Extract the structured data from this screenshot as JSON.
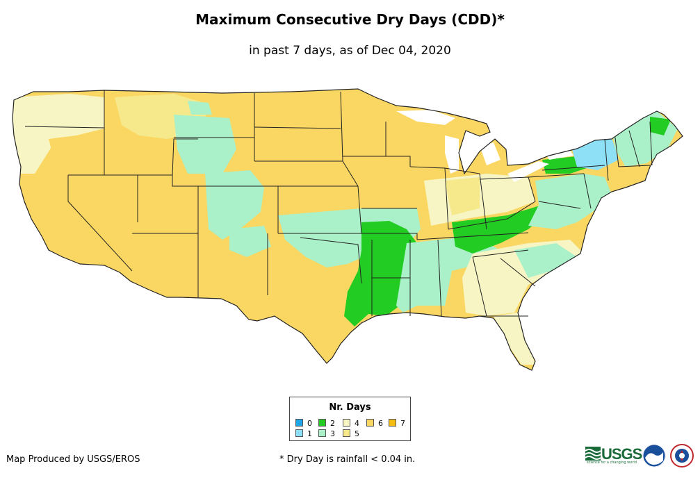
{
  "header": {
    "title": "Maximum Consecutive Dry Days (CDD)*",
    "subtitle": "in past 7 days, as of Dec 04, 2020"
  },
  "legend": {
    "title": "Nr. Days",
    "items": [
      {
        "label": "0",
        "color": "#1ea6e8"
      },
      {
        "label": "1",
        "color": "#8ee0f7"
      },
      {
        "label": "2",
        "color": "#22cc22"
      },
      {
        "label": "3",
        "color": "#aaf0c8"
      },
      {
        "label": "4",
        "color": "#f7f5c4"
      },
      {
        "label": "5",
        "color": "#f6e98c"
      },
      {
        "label": "6",
        "color": "#fad762"
      },
      {
        "label": "7",
        "color": "#f5be10"
      }
    ]
  },
  "footer": {
    "credit": "Map Produced by USGS/EROS",
    "footnote": "* Dry Day is rainfall < 0.04 in.",
    "logos": [
      "usgs-logo",
      "noaa-logo",
      "nws-logo"
    ],
    "usgs_text": "USGS",
    "usgs_tagline": "science for a changing world"
  }
}
